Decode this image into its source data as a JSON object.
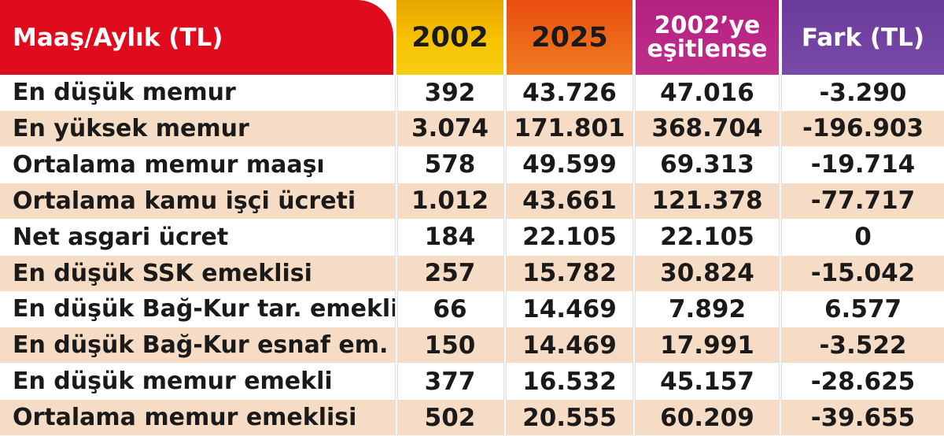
{
  "chart_data": {
    "type": "table",
    "columns": [
      "Maaş/Aylık (TL)",
      "2002",
      "2025",
      "2002’ye eşitlense",
      "Fark (TL)"
    ],
    "header_esit_lines": [
      "2002’ye",
      "eşitlense"
    ],
    "rows": [
      [
        "En düşük memur",
        "392",
        "43.726",
        "47.016",
        "-3.290"
      ],
      [
        "En yüksek memur",
        "3.074",
        "171.801",
        "368.704",
        "-196.903"
      ],
      [
        "Ortalama memur maaşı",
        "578",
        "49.599",
        "69.313",
        "-19.714"
      ],
      [
        "Ortalama kamu işçi ücreti",
        "1.012",
        "43.661",
        "121.378",
        "-77.717"
      ],
      [
        "Net asgari ücret",
        "184",
        "22.105",
        "22.105",
        "0"
      ],
      [
        "En düşük SSK emeklisi",
        "257",
        "15.782",
        "30.824",
        "-15.042"
      ],
      [
        "En düşük Bağ-Kur tar. emekli",
        "66",
        "14.469",
        "7.892",
        "6.577"
      ],
      [
        "En düşük Bağ-Kur esnaf em.",
        "150",
        "14.469",
        "17.991",
        "-3.522"
      ],
      [
        "En düşük memur emekli",
        "377",
        "16.532",
        "45.157",
        "-28.625"
      ],
      [
        "Ortalama memur emeklisi",
        "502",
        "20.555",
        "60.209",
        "-39.655"
      ]
    ],
    "colors": {
      "label_header": "#e00b1c",
      "col_2002_header": "#f7c300",
      "col_2025_header": "#ec6a18",
      "col_esit_header": "#c02e8c",
      "col_fark_header": "#7a4aa8",
      "alt_row": "#f6dcc4"
    }
  }
}
